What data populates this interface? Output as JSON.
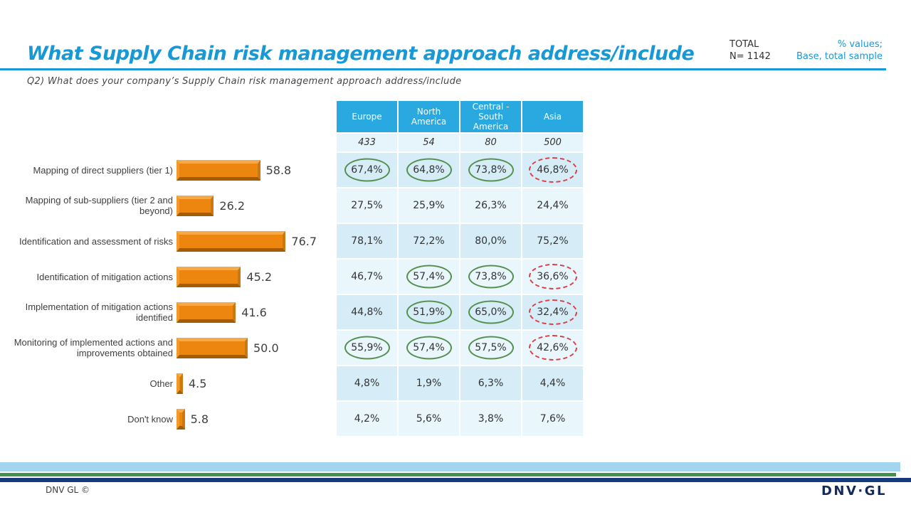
{
  "header": {
    "title": "What Supply Chain risk management approach address/include",
    "total_label": "TOTAL",
    "total_n": "N= 1142",
    "note_line1": "% values;",
    "note_line2": "Base, total sample",
    "question": "Q2) What does your company’s Supply Chain risk management approach address/include"
  },
  "chart_data": {
    "type": "bar",
    "orientation": "horizontal",
    "title": "",
    "xlabel": "",
    "ylabel": "",
    "xlim": [
      0,
      100
    ],
    "grid": false,
    "bar_color": "#ec860f",
    "categories": [
      "Mapping of direct suppliers (tier 1)",
      "Mapping of sub-suppliers (tier 2 and beyond)",
      "Identification and assessment of risks",
      "Identification of mitigation actions",
      "Implementation of mitigation actions identified",
      "Monitoring of implemented actions and improvements obtained",
      "Other",
      "Don't know"
    ],
    "values": [
      58.8,
      26.2,
      76.7,
      45.2,
      41.6,
      50.0,
      4.5,
      5.8
    ]
  },
  "table": {
    "columns": [
      "Europe",
      "North America",
      "Central - South America",
      "Asia"
    ],
    "base_values": [
      "433",
      "54",
      "80",
      "500"
    ],
    "rows": [
      {
        "values": [
          "67,4%",
          "64,8%",
          "73,8%",
          "46,8%"
        ],
        "marks": [
          "green",
          "green",
          "green",
          "red"
        ]
      },
      {
        "values": [
          "27,5%",
          "25,9%",
          "26,3%",
          "24,4%"
        ],
        "marks": [
          null,
          null,
          null,
          null
        ]
      },
      {
        "values": [
          "78,1%",
          "72,2%",
          "80,0%",
          "75,2%"
        ],
        "marks": [
          null,
          null,
          null,
          null
        ]
      },
      {
        "values": [
          "46,7%",
          "57,4%",
          "73,8%",
          "36,6%"
        ],
        "marks": [
          null,
          "green",
          "green",
          "red"
        ]
      },
      {
        "values": [
          "44,8%",
          "51,9%",
          "65,0%",
          "32,4%"
        ],
        "marks": [
          null,
          "green",
          "green",
          "red"
        ]
      },
      {
        "values": [
          "55,9%",
          "57,4%",
          "57,5%",
          "42,6%"
        ],
        "marks": [
          "green",
          "green",
          "green",
          "red"
        ]
      },
      {
        "values": [
          "4,8%",
          "1,9%",
          "6,3%",
          "4,4%"
        ],
        "marks": [
          null,
          null,
          null,
          null
        ]
      },
      {
        "values": [
          "4,2%",
          "5,6%",
          "3,8%",
          "7,6%"
        ],
        "marks": [
          null,
          null,
          null,
          null
        ]
      }
    ]
  },
  "footer": {
    "copyright": "DNV GL ©",
    "logo": "DNV·GL"
  },
  "colors": {
    "accent_cyan": "#1899d5",
    "table_header_bg": "#2aa9e0",
    "row_dark": "#d6edf8",
    "row_light": "#e9f6fc",
    "bar_orange": "#ec860f",
    "mark_green": "#55904f",
    "mark_red": "#d84049",
    "stripe_lightblue": "#a3d5f0",
    "stripe_green": "#44904e",
    "stripe_navy": "#17397e",
    "logo_navy": "#132a5d"
  }
}
